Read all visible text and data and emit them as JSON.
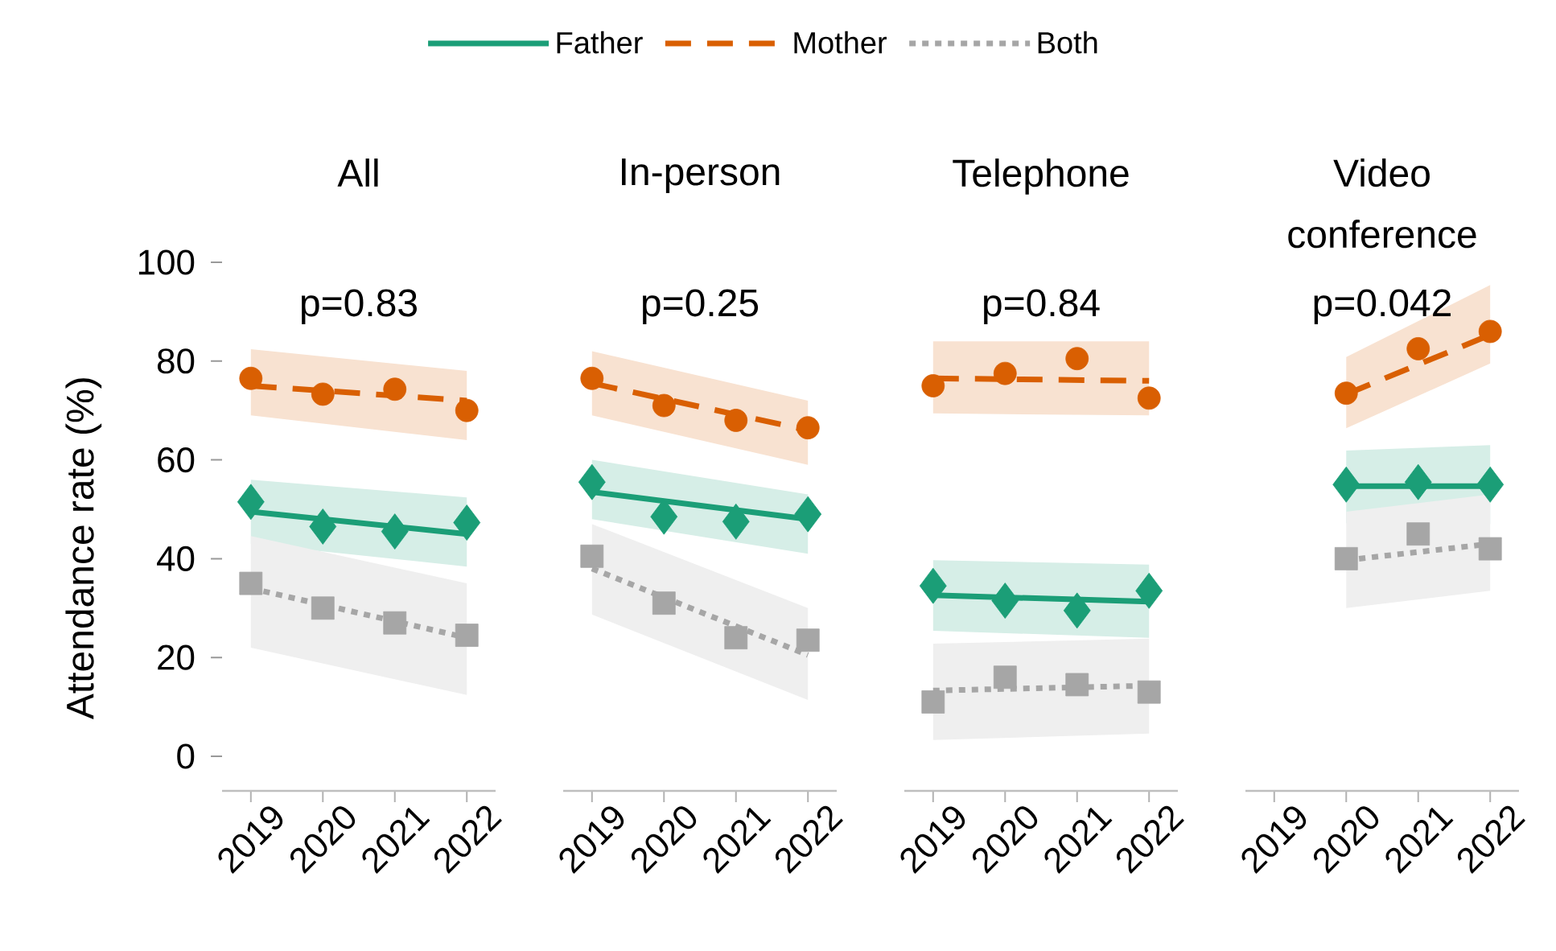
{
  "chart_data": [
    {
      "type": "line",
      "title": "All",
      "ylabel": "Attendance rate (%)",
      "annotations": [
        "p=0.83"
      ],
      "legend": "top",
      "xlim": [
        2018.6,
        2022.4
      ],
      "xticks": [
        2019,
        2020,
        2021,
        2022
      ],
      "ylim": [
        -7,
        100
      ],
      "yticks": [
        0,
        20,
        40,
        60,
        80,
        100
      ],
      "series": [
        {
          "name": "Father",
          "type": "line",
          "color": "#1b9e77",
          "line_style": "solid",
          "x": [
            2019,
            2022
          ],
          "values": [
            49.5,
            45
          ],
          "lower": [
            43,
            38.4
          ],
          "upper": [
            56,
            52.4
          ]
        },
        {
          "name": "Mother",
          "type": "line",
          "color": "#d95f02",
          "line_style": "dashed",
          "x": [
            2019,
            2022
          ],
          "values": [
            75,
            72
          ],
          "lower": [
            69,
            64
          ],
          "upper": [
            82.4,
            78
          ]
        },
        {
          "name": "Both",
          "type": "line",
          "color": "#a6a6a6",
          "line_style": "dotted",
          "x": [
            2019,
            2022
          ],
          "values": [
            34,
            24
          ],
          "lower": [
            22,
            12.4
          ],
          "upper": [
            44.6,
            35
          ]
        },
        {
          "type": "scatter",
          "color": "#1b9e77",
          "marker": "diamond",
          "x": [
            2019,
            2020,
            2021,
            2022
          ],
          "values": [
            51.5,
            46.5,
            45.5,
            47.3
          ]
        },
        {
          "type": "scatter",
          "color": "#d95f02",
          "marker": "circle",
          "x": [
            2019,
            2020,
            2021,
            2022
          ],
          "values": [
            76.5,
            73.3,
            74.3,
            70
          ]
        },
        {
          "type": "scatter",
          "color": "#a6a6a6",
          "marker": "square",
          "x": [
            2019,
            2020,
            2021,
            2022
          ],
          "values": [
            35,
            30,
            27,
            24.5
          ]
        }
      ]
    },
    {
      "type": "line",
      "title": "In-person",
      "annotations": [
        "p=0.25"
      ],
      "tick_labels": "x",
      "xlim": [
        2018.6,
        2022.4
      ],
      "xticks": [
        2019,
        2020,
        2021,
        2022
      ],
      "ylim": [
        -7,
        100
      ],
      "series": [
        {
          "type": "line",
          "color": "#1b9e77",
          "line_style": "solid",
          "x": [
            2019,
            2022
          ],
          "values": [
            53.5,
            48
          ],
          "lower": [
            48,
            41
          ],
          "upper": [
            60,
            53
          ]
        },
        {
          "type": "line",
          "color": "#d95f02",
          "line_style": "dashed",
          "x": [
            2019,
            2022
          ],
          "values": [
            75.5,
            66
          ],
          "lower": [
            69,
            59
          ],
          "upper": [
            82,
            72
          ]
        },
        {
          "type": "line",
          "color": "#a6a6a6",
          "line_style": "dotted",
          "x": [
            2019,
            2022
          ],
          "values": [
            38,
            20.5
          ],
          "lower": [
            28.7,
            11.4
          ],
          "upper": [
            47,
            30
          ]
        },
        {
          "type": "scatter",
          "color": "#1b9e77",
          "marker": "diamond",
          "x": [
            2019,
            2020,
            2021,
            2022
          ],
          "values": [
            55.5,
            48.5,
            47.5,
            49
          ]
        },
        {
          "type": "scatter",
          "color": "#d95f02",
          "marker": "circle",
          "x": [
            2019,
            2020,
            2021,
            2022
          ],
          "values": [
            76.5,
            71,
            68,
            66.5
          ]
        },
        {
          "type": "scatter",
          "color": "#a6a6a6",
          "marker": "square",
          "x": [
            2019,
            2020,
            2021,
            2022
          ],
          "values": [
            40.5,
            31,
            24,
            23.5
          ]
        }
      ]
    },
    {
      "type": "line",
      "title": "Telephone",
      "annotations": [
        "p=0.84"
      ],
      "tick_labels": "x",
      "xlim": [
        2018.6,
        2022.4
      ],
      "xticks": [
        2019,
        2020,
        2021,
        2022
      ],
      "ylim": [
        -7,
        100
      ],
      "series": [
        {
          "type": "line",
          "color": "#1b9e77",
          "line_style": "solid",
          "x": [
            2019,
            2022
          ],
          "values": [
            32.6,
            31.3
          ],
          "lower": [
            25.4,
            24
          ],
          "upper": [
            39.7,
            38.8
          ]
        },
        {
          "type": "line",
          "color": "#d95f02",
          "line_style": "dashed",
          "x": [
            2019,
            2022
          ],
          "values": [
            76.5,
            76
          ],
          "lower": [
            69.4,
            69
          ],
          "upper": [
            84,
            84
          ]
        },
        {
          "type": "line",
          "color": "#a6a6a6",
          "line_style": "dotted",
          "x": [
            2019,
            2022
          ],
          "values": [
            13.3,
            14.3
          ],
          "lower": [
            3.3,
            4.6
          ],
          "upper": [
            22.8,
            23.8
          ]
        },
        {
          "type": "scatter",
          "color": "#1b9e77",
          "marker": "diamond",
          "x": [
            2019,
            2020,
            2021,
            2022
          ],
          "values": [
            34.5,
            31.5,
            29.5,
            33.5
          ]
        },
        {
          "type": "scatter",
          "color": "#d95f02",
          "marker": "circle",
          "x": [
            2019,
            2020,
            2021,
            2022
          ],
          "values": [
            75,
            77.5,
            80.5,
            72.5
          ]
        },
        {
          "type": "scatter",
          "color": "#a6a6a6",
          "marker": "square",
          "x": [
            2019,
            2020,
            2021,
            2022
          ],
          "values": [
            11,
            16,
            14.5,
            13
          ]
        }
      ]
    },
    {
      "type": "line",
      "title": "Video conference",
      "annotations": [
        "p=0.042"
      ],
      "tick_labels": "x",
      "xlim": [
        2018.6,
        2022.4
      ],
      "xticks": [
        2019,
        2020,
        2021,
        2022
      ],
      "ylim": [
        -7,
        100
      ],
      "series": [
        {
          "type": "line",
          "color": "#1b9e77",
          "line_style": "solid",
          "x": [
            2020,
            2022
          ],
          "values": [
            54.7,
            54.7
          ],
          "lower": [
            47.2,
            47
          ],
          "upper": [
            61.9,
            63
          ]
        },
        {
          "type": "line",
          "color": "#d95f02",
          "line_style": "dashed",
          "x": [
            2020,
            2022
          ],
          "values": [
            73.3,
            85.3
          ],
          "lower": [
            66.4,
            79.5
          ],
          "upper": [
            80.8,
            95.4
          ]
        },
        {
          "type": "line",
          "color": "#a6a6a6",
          "line_style": "dotted",
          "x": [
            2020,
            2022
          ],
          "values": [
            39.7,
            43
          ],
          "lower": [
            30,
            33.5
          ],
          "upper": [
            49.5,
            53
          ]
        },
        {
          "type": "scatter",
          "color": "#1b9e77",
          "marker": "diamond",
          "x": [
            2020,
            2021,
            2022
          ],
          "values": [
            55,
            55.5,
            55
          ]
        },
        {
          "type": "scatter",
          "color": "#d95f02",
          "marker": "circle",
          "x": [
            2020,
            2021,
            2022
          ],
          "values": [
            73.5,
            82.5,
            86
          ]
        },
        {
          "type": "scatter",
          "color": "#a6a6a6",
          "marker": "square",
          "x": [
            2020,
            2021,
            2022
          ],
          "values": [
            40,
            45,
            42
          ]
        }
      ]
    }
  ]
}
